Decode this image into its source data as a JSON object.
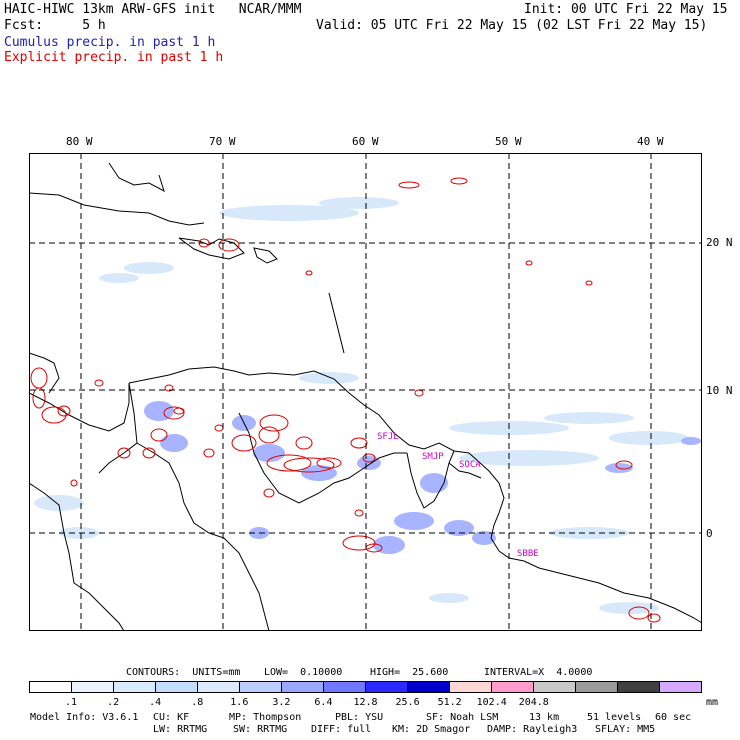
{
  "header": {
    "title": "HAIC-HIWC 13km ARW-GFS init   NCAR/MMM",
    "init": "Init: 00 UTC Fri 22 May 15",
    "fcst": "Fcst:     5 h",
    "valid": "Valid: 05 UTC Fri 22 May 15 (02 LST Fri 22 May 15)",
    "cumulus": "Cumulus precip. in past 1 h",
    "explicit": "Explicit precip. in past 1 h"
  },
  "map": {
    "lon_labels": [
      "80 W",
      "70 W",
      "60 W",
      "50 W",
      "40 W"
    ],
    "lat_labels": [
      "20 N",
      "10 N",
      "0"
    ],
    "stations": [
      "SFJL",
      "SMJP",
      "SOCA",
      "SBBE"
    ]
  },
  "contours": {
    "units": "CONTOURS:  UNITS=mm",
    "low": "LOW=  0.10000",
    "high": "HIGH=  25.600",
    "interval": "INTERVAL=X  4.0000"
  },
  "colorbar": {
    "ticks": [
      ".1",
      ".2",
      ".4",
      ".8",
      "1.6",
      "3.2",
      "6.4",
      "12.8",
      "25.6",
      "51.2",
      "102.4",
      "204.8"
    ],
    "unit": "mm",
    "colors": [
      "#ffffff",
      "#eef4ff",
      "#d8ebff",
      "#c2ddff",
      "#dde9ff",
      "#bccdff",
      "#9aa8ff",
      "#6f78ff",
      "#2a2aff",
      "#0000cc",
      "#ffd6d6",
      "#ff9ccd",
      "#c8c8c8",
      "#9a9a9a",
      "#404040",
      "#d6a8ff"
    ]
  },
  "footer": {
    "line1": [
      "Model Info: V3.6.1",
      "CU: KF",
      "MP: Thompson",
      "PBL: YSU",
      "SF: Noah LSM",
      "13 km",
      "51 levels",
      "60 sec"
    ],
    "line2": [
      "LW: RRTMG",
      "SW: RRTMG",
      "DIFF: full",
      "KM: 2D Smagor",
      "DAMP: Rayleigh3",
      "SFLAY: MM5"
    ]
  }
}
